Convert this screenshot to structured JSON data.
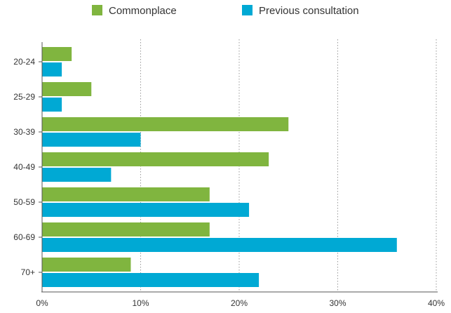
{
  "chart_data": {
    "type": "bar",
    "orientation": "horizontal",
    "categories": [
      "20-24",
      "25-29",
      "30-39",
      "40-49",
      "50-59",
      "60-69",
      "70+"
    ],
    "series": [
      {
        "name": "Commonplace",
        "values": [
          3,
          5,
          25,
          23,
          17,
          17,
          9
        ],
        "color": "#80b53f"
      },
      {
        "name": "Previous consultation",
        "values": [
          2,
          2,
          10,
          7,
          21,
          36,
          22
        ],
        "color": "#00a9d4"
      }
    ],
    "xlim": [
      0,
      40
    ],
    "xticks": [
      0,
      10,
      20,
      30,
      40
    ],
    "xtick_labels": [
      "0%",
      "10%",
      "20%",
      "30%",
      "40%"
    ],
    "legend_position": "top",
    "grid": "vertical-dotted",
    "title": "",
    "xlabel": "",
    "ylabel": ""
  }
}
